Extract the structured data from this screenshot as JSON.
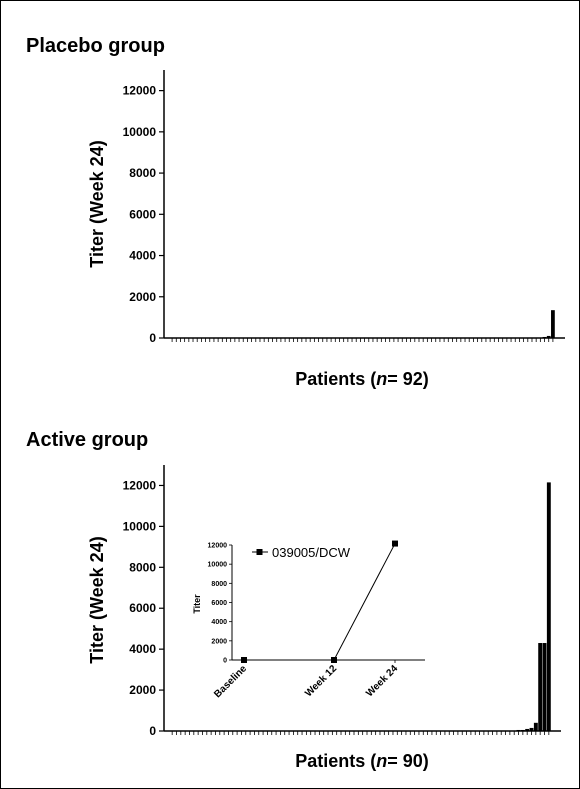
{
  "chart_data": [
    {
      "type": "bar",
      "title": "Placebo group",
      "xlabel_prefix": "Patients (",
      "xlabel_n": "n",
      "xlabel_suffix": "= 92)",
      "ylabel": "Titer (Week 24)",
      "ylim": [
        0,
        13000
      ],
      "yticks": [
        0,
        2000,
        4000,
        6000,
        8000,
        10000,
        12000
      ],
      "n_patients": 92,
      "values": [
        0,
        0,
        0,
        0,
        0,
        0,
        0,
        0,
        0,
        0,
        0,
        0,
        0,
        0,
        0,
        0,
        0,
        0,
        0,
        0,
        0,
        0,
        0,
        0,
        0,
        0,
        0,
        0,
        0,
        0,
        0,
        0,
        0,
        0,
        0,
        0,
        0,
        0,
        0,
        0,
        0,
        0,
        0,
        0,
        0,
        0,
        0,
        0,
        0,
        0,
        0,
        0,
        0,
        0,
        0,
        0,
        0,
        0,
        0,
        0,
        0,
        0,
        0,
        0,
        0,
        0,
        0,
        0,
        0,
        0,
        0,
        0,
        0,
        0,
        0,
        0,
        0,
        0,
        0,
        0,
        0,
        0,
        0,
        0,
        0,
        0,
        0,
        0,
        0,
        50,
        100,
        1350
      ]
    },
    {
      "type": "bar",
      "title": "Active group",
      "xlabel_prefix": "Patients (",
      "xlabel_n": "n",
      "xlabel_suffix": "= 90)",
      "ylabel": "Titer (Week 24)",
      "ylim": [
        0,
        13000
      ],
      "yticks": [
        0,
        2000,
        4000,
        6000,
        8000,
        10000,
        12000
      ],
      "n_patients": 90,
      "values": [
        0,
        0,
        0,
        0,
        0,
        0,
        0,
        0,
        0,
        0,
        0,
        0,
        0,
        0,
        0,
        0,
        0,
        0,
        0,
        0,
        0,
        0,
        0,
        0,
        0,
        0,
        0,
        0,
        0,
        0,
        0,
        0,
        0,
        0,
        0,
        0,
        0,
        0,
        0,
        0,
        0,
        0,
        0,
        0,
        0,
        0,
        0,
        0,
        0,
        0,
        0,
        0,
        0,
        0,
        0,
        0,
        0,
        0,
        0,
        0,
        0,
        0,
        0,
        0,
        0,
        0,
        0,
        0,
        0,
        0,
        0,
        0,
        0,
        0,
        0,
        0,
        0,
        0,
        0,
        0,
        50,
        50,
        100,
        150,
        400,
        4300,
        4300,
        12150
      ],
      "inset": {
        "type": "line",
        "ylabel": "Titer",
        "categories": [
          "Baseline",
          "Week 12",
          "Week 24"
        ],
        "ylim": [
          0,
          12000
        ],
        "yticks": [
          0,
          2000,
          4000,
          6000,
          8000,
          10000,
          12000
        ],
        "series": [
          {
            "name": "039005/DCW",
            "values": [
              0,
              0,
              12150
            ]
          }
        ]
      }
    }
  ]
}
